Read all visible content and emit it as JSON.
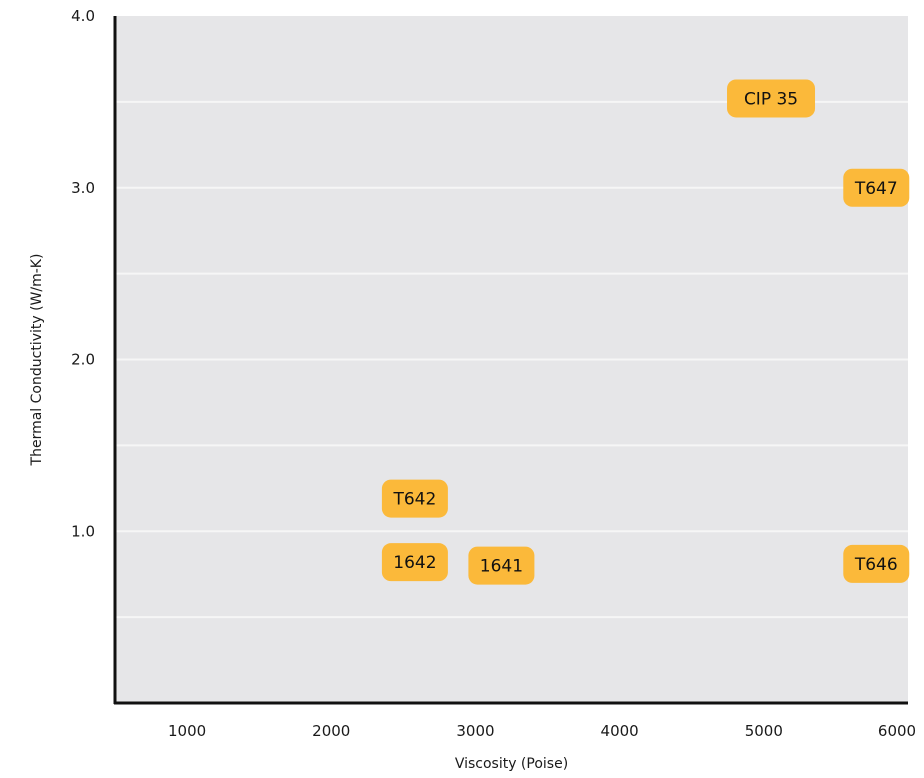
{
  "chart_data": {
    "type": "scatter",
    "title": "",
    "xlabel": "Viscosity (Poise)",
    "ylabel": "Thermal Conductivity (W/m-K)",
    "xlim": [
      500,
      6000
    ],
    "ylim": [
      0,
      4.0
    ],
    "x_ticks": [
      1000,
      2000,
      3000,
      4000,
      5000,
      6000
    ],
    "x_tick_labels": [
      "1000",
      "2000",
      "3000",
      "4000",
      "5000",
      "6000"
    ],
    "y_ticks": [
      1.0,
      2.0,
      3.0,
      4.0
    ],
    "y_tick_labels": [
      "1.0",
      "2.0",
      "3.0",
      "4.0"
    ],
    "grid": true,
    "points": [
      {
        "label": "CIP 35",
        "x": 5050,
        "y": 3.52
      },
      {
        "label": "T647",
        "x": 5780,
        "y": 3.0
      },
      {
        "label": "T642",
        "x": 2580,
        "y": 1.19
      },
      {
        "label": "1642",
        "x": 2580,
        "y": 0.82
      },
      {
        "label": "1641",
        "x": 3180,
        "y": 0.8
      },
      {
        "label": "T646",
        "x": 5780,
        "y": 0.81
      }
    ],
    "colors": {
      "plot_background": "#e6e6e8",
      "marker": "#fbb93a",
      "gridline": "#f6f6f6",
      "axis": "#111111"
    }
  }
}
